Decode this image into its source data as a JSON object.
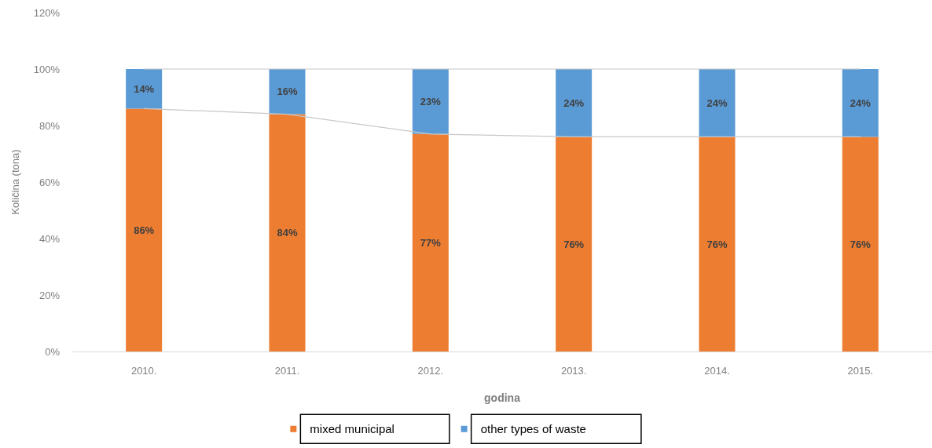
{
  "chart_data": {
    "type": "bar",
    "xlabel": "godina",
    "ylabel": "Količina (tona)",
    "categories": [
      "2010.",
      "2011.",
      "2012.",
      "2013.",
      "2014.",
      "2015."
    ],
    "stacked": true,
    "series": [
      {
        "name": "mixed municipal",
        "color": "#ed7d31",
        "values": [
          86,
          84,
          77,
          76,
          76,
          76
        ],
        "value_labels": [
          "86%",
          "84%",
          "77%",
          "76%",
          "76%",
          "76%"
        ]
      },
      {
        "name": "other types of waste",
        "color": "#5b9bd5",
        "values": [
          14,
          16,
          23,
          24,
          24,
          24
        ],
        "value_labels": [
          "14%",
          "16%",
          "23%",
          "24%",
          "24%",
          "24%"
        ]
      },
      {
        "type": "line",
        "color": "#c8c8c8",
        "values": [
          86,
          84,
          77,
          76,
          76,
          76
        ]
      },
      {
        "type": "line",
        "color": "#c8c8c8",
        "values": [
          100,
          100,
          100,
          100,
          100,
          100
        ]
      }
    ],
    "ylim": [
      0,
      120
    ],
    "yticks": [
      {
        "value": 0,
        "label": "0%"
      },
      {
        "value": 20,
        "label": "20%"
      },
      {
        "value": 40,
        "label": "40%"
      },
      {
        "value": 60,
        "label": "60%"
      },
      {
        "value": 80,
        "label": "80%"
      },
      {
        "value": 100,
        "label": "100%"
      },
      {
        "value": 120,
        "label": "120%"
      }
    ],
    "grid": false,
    "legend": "bottom",
    "marker": "none",
    "line_style": "solid"
  }
}
